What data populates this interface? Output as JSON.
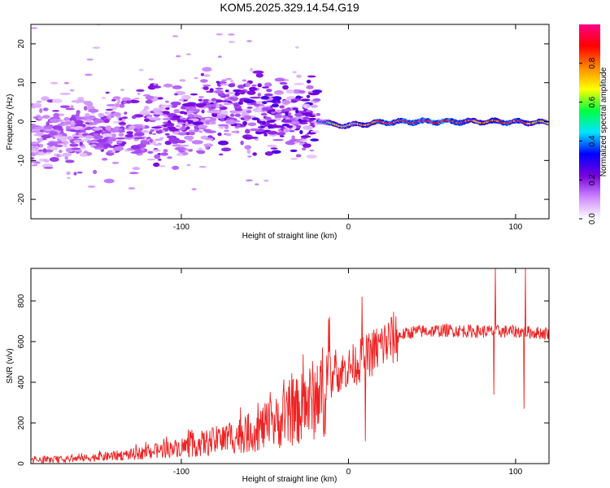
{
  "chart_data": [
    {
      "type": "heatmap",
      "title": "KOM5.2025.329.14.54.G19",
      "xlabel": "Height of straight line (km)",
      "ylabel": "Frequency (Hz)",
      "xlim": [
        -190,
        120
      ],
      "ylim": [
        -25,
        25
      ],
      "xticks": [
        {
          "value": -100,
          "label": "-100"
        },
        {
          "value": 0,
          "label": "0"
        },
        {
          "value": 100,
          "label": "100"
        }
      ],
      "yticks": [
        {
          "value": 20,
          "label": "20"
        },
        {
          "value": 10,
          "label": "10"
        },
        {
          "value": 0,
          "label": "0"
        },
        {
          "value": -10,
          "label": "-10"
        },
        {
          "value": -20,
          "label": "-20"
        }
      ],
      "colorbar": {
        "label": "Normalized spectral amplitude",
        "range": [
          0,
          1
        ],
        "ticks": [
          {
            "value": 0.0,
            "label": "0.0"
          },
          {
            "value": 0.2,
            "label": "0.2"
          },
          {
            "value": 0.4,
            "label": "0.4"
          },
          {
            "value": 0.6,
            "label": "0.6"
          },
          {
            "value": 0.8,
            "label": "0.8"
          }
        ],
        "colors": [
          "#ffffff",
          "#cc88ff",
          "#7700dd",
          "#0000ff",
          "#00e5ff",
          "#00ff40",
          "#ffff00",
          "#ff8800",
          "#ff0000",
          "#ff0088"
        ]
      },
      "line_component": {
        "description": "strong narrow line near 0 Hz",
        "x": [
          -18,
          -10,
          0,
          10,
          20,
          40,
          60,
          80,
          100,
          120
        ],
        "frequency": [
          0.5,
          -0.8,
          -1.0,
          -0.6,
          -0.2,
          0.0,
          0.0,
          0.0,
          -0.1,
          -0.3
        ],
        "amplitude": [
          0.35,
          0.55,
          0.6,
          0.7,
          0.9,
          0.95,
          0.95,
          0.7,
          0.85,
          0.6
        ]
      },
      "scatter_region": {
        "description": "scattered low-amplitude speckle",
        "x_range": [
          -190,
          -18
        ],
        "center_frequency": [
          [
            -190,
            -3
          ],
          [
            -150,
            -2
          ],
          [
            -110,
            -1
          ],
          [
            -80,
            3
          ],
          [
            -50,
            2
          ],
          [
            -20,
            1
          ]
        ],
        "amplitude_range": [
          0.05,
          0.25
        ]
      }
    },
    {
      "type": "line",
      "title": "",
      "xlabel": "Height of straight line (km)",
      "ylabel": "SNR (v/v)",
      "xlim": [
        -190,
        120
      ],
      "ylim": [
        0,
        960
      ],
      "xticks": [
        {
          "value": -100,
          "label": "-100"
        },
        {
          "value": 0,
          "label": "0"
        },
        {
          "value": 100,
          "label": "100"
        }
      ],
      "yticks": [
        {
          "value": 0,
          "label": "0"
        },
        {
          "value": 200,
          "label": "200"
        },
        {
          "value": 400,
          "label": "400"
        },
        {
          "value": 600,
          "label": "600"
        },
        {
          "value": 800,
          "label": "800"
        }
      ],
      "color": "#ee2222",
      "series": [
        {
          "name": "SNR",
          "trend_x": [
            -190,
            -160,
            -130,
            -100,
            -80,
            -60,
            -40,
            -30,
            -20,
            -15,
            -10,
            0,
            10,
            20,
            30,
            40,
            60,
            80,
            100,
            120
          ],
          "trend_y": [
            15,
            25,
            45,
            80,
            110,
            150,
            210,
            260,
            320,
            360,
            430,
            470,
            520,
            580,
            630,
            650,
            655,
            650,
            650,
            640
          ],
          "spikes": [
            {
              "x": 8,
              "value": 820
            },
            {
              "x": 10,
              "value": 110
            },
            {
              "x": 87,
              "value": 340
            },
            {
              "x": 88,
              "value": 960
            },
            {
              "x": 105,
              "value": 270
            },
            {
              "x": 106,
              "value": 960
            }
          ]
        }
      ]
    }
  ]
}
